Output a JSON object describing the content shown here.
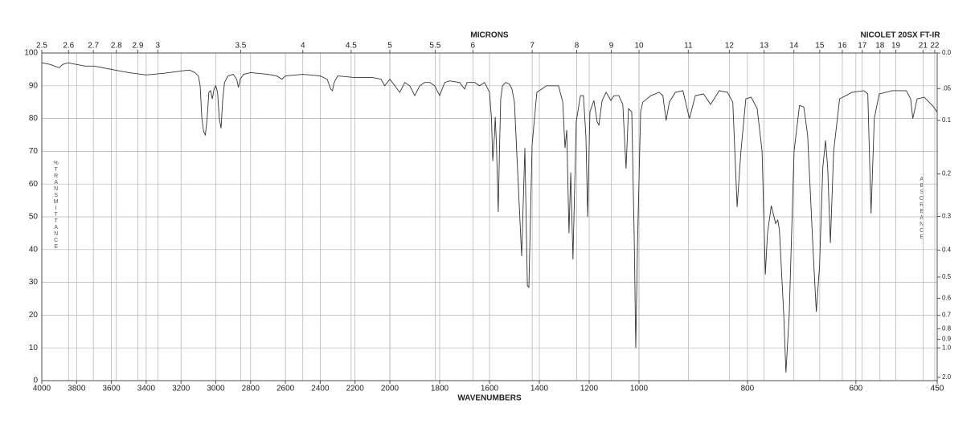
{
  "chart_data": {
    "type": "line",
    "title": "NICOLET 20SX FT-IR",
    "x_label": "WAVENUMBERS",
    "x2_label": "MICRONS",
    "y_label": "%TRANSMITTANCE",
    "y2_label": "ABSORBANCE",
    "color": "#333333",
    "grid": true,
    "xlim": [
      4000,
      450
    ],
    "xscale_breaks": [
      2000,
      1000
    ],
    "xticks": [
      4000,
      3800,
      3600,
      3400,
      3200,
      3000,
      2800,
      2600,
      2400,
      2200,
      2000,
      1800,
      1600,
      1400,
      1200,
      1000,
      800,
      600,
      450
    ],
    "x2scale": "microns",
    "x2ticks": [
      2.5,
      2.6,
      2.7,
      2.8,
      2.9,
      3,
      3.5,
      4,
      4.5,
      5,
      5.5,
      6,
      7,
      8,
      9,
      10,
      11,
      12,
      13,
      14,
      15,
      16,
      17,
      18,
      19,
      21,
      22
    ],
    "ylim": [
      0,
      100
    ],
    "yticks": [
      0,
      10,
      20,
      30,
      40,
      50,
      60,
      70,
      80,
      90,
      100
    ],
    "y2scale": "absorbance",
    "y2ticks": [
      {
        "value": 0,
        "label": "0.0"
      },
      {
        "value": 0.05,
        "label": ".05"
      },
      0.1,
      0.2,
      0.3,
      0.4,
      0.5,
      0.6,
      0.7,
      0.8,
      0.9,
      {
        "value": 1,
        "label": "1.0"
      },
      {
        "value": 2,
        "label": "2.0"
      }
    ],
    "x": [
      4000,
      3950,
      3900,
      3880,
      3850,
      3800,
      3750,
      3700,
      3650,
      3600,
      3500,
      3400,
      3300,
      3200,
      3150,
      3120,
      3100,
      3090,
      3080,
      3070,
      3060,
      3050,
      3040,
      3030,
      3020,
      3010,
      3000,
      2990,
      2980,
      2970,
      2960,
      2950,
      2930,
      2900,
      2880,
      2870,
      2860,
      2840,
      2800,
      2700,
      2650,
      2620,
      2600,
      2500,
      2400,
      2360,
      2340,
      2330,
      2320,
      2300,
      2200,
      2100,
      2050,
      2030,
      2000,
      1960,
      1940,
      1920,
      1900,
      1880,
      1860,
      1840,
      1820,
      1800,
      1780,
      1760,
      1720,
      1700,
      1690,
      1660,
      1640,
      1620,
      1613,
      1600,
      1592,
      1587,
      1580,
      1577,
      1572,
      1565,
      1560,
      1555,
      1548,
      1535,
      1520,
      1510,
      1500,
      1471,
      1458,
      1448,
      1442,
      1429,
      1410,
      1371,
      1323,
      1306,
      1297,
      1290,
      1281,
      1274,
      1265,
      1252,
      1235,
      1223,
      1213,
      1206,
      1197,
      1181,
      1168,
      1161,
      1148,
      1132,
      1113,
      1100,
      1081,
      1065,
      1052,
      1042,
      1029,
      1019,
      1013,
      1006,
      997,
      993,
      978,
      963,
      956,
      950,
      944,
      933,
      919,
      907,
      896,
      881,
      868,
      852,
      837,
      827,
      819,
      812,
      803,
      793,
      782,
      773,
      767,
      763,
      756,
      748,
      744,
      741,
      733,
      729,
      723,
      714,
      704,
      696,
      689,
      679,
      673,
      667,
      661,
      656,
      652,
      647,
      641,
      630,
      607,
      585,
      578,
      572,
      566,
      557,
      533,
      507,
      499,
      495,
      487,
      474,
      459,
      450
    ],
    "values": [
      97,
      96.5,
      95.5,
      96.5,
      97,
      96.5,
      96,
      96,
      95.5,
      95,
      94,
      93.3,
      93.8,
      94.5,
      94.8,
      94,
      93,
      90,
      80,
      76,
      75,
      80,
      88,
      88.5,
      86,
      89,
      90,
      88,
      80,
      77,
      86,
      91,
      93,
      93.5,
      92,
      89.5,
      92,
      93.5,
      94,
      93.5,
      93,
      92,
      93,
      93.5,
      93,
      92,
      89,
      88.5,
      91,
      93,
      92.5,
      92.5,
      92,
      90,
      92,
      88,
      91,
      90,
      87,
      90,
      91,
      91,
      90,
      87,
      91,
      91.5,
      91,
      89,
      91,
      91,
      90,
      91,
      90,
      88,
      80,
      67,
      75,
      80.5,
      72,
      51.5,
      70,
      86,
      90,
      91,
      90.5,
      89,
      85,
      38,
      71,
      29,
      28.5,
      72,
      88,
      90,
      90,
      85,
      71,
      76.5,
      45,
      63.5,
      37,
      79,
      87,
      87,
      74.5,
      50,
      82,
      85.5,
      79,
      78,
      85.5,
      88,
      85.5,
      87,
      87,
      84.3,
      64.7,
      83,
      82,
      42.6,
      10,
      42,
      82,
      85,
      87,
      88,
      87,
      79.4,
      85,
      88,
      88.5,
      80,
      87,
      87.5,
      84.3,
      88.5,
      88,
      85,
      53,
      70,
      86,
      86.5,
      83,
      70,
      32.4,
      45,
      53.4,
      48,
      49,
      46,
      20,
      2.5,
      20,
      70,
      84,
      83.5,
      75,
      40,
      21,
      35,
      65,
      73.3,
      65,
      42,
      70,
      86,
      88,
      88.5,
      87.5,
      51,
      80,
      87.5,
      88.5,
      88.5,
      86,
      80,
      86,
      86.5,
      84,
      82
    ]
  }
}
